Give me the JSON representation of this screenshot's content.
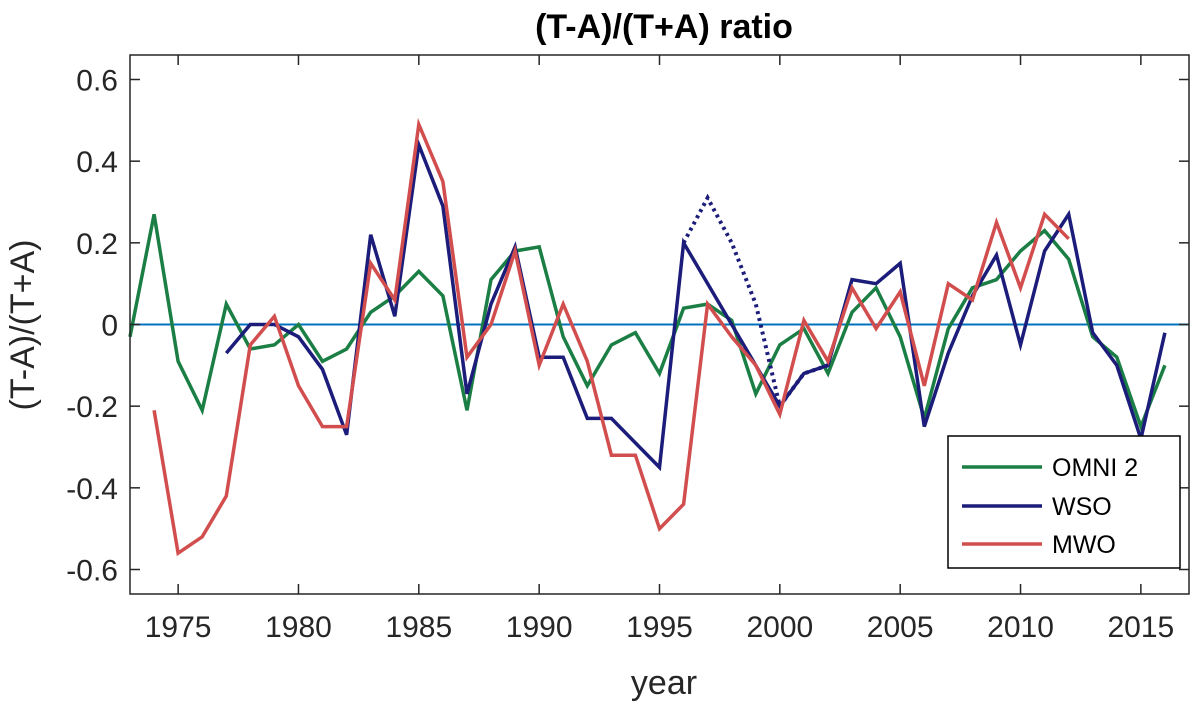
{
  "chart_data": {
    "type": "line",
    "title": "(T-A)/(T+A) ratio",
    "xlabel": "year",
    "ylabel": "(T-A)/(T+A)",
    "xlim": [
      1973,
      2017
    ],
    "ylim": [
      -0.66,
      0.66
    ],
    "xticks": [
      1975,
      1980,
      1985,
      1990,
      1995,
      2000,
      2005,
      2010,
      2015
    ],
    "yticks": [
      -0.6,
      -0.4,
      -0.2,
      0,
      0.2,
      0.4,
      0.6
    ],
    "ytick_labels": [
      "-0.6",
      "-0.4",
      "-0.2",
      "0",
      "0.2",
      "0.4",
      "0.6"
    ],
    "legend_position": "bottom-right",
    "reference_line": {
      "y": 0,
      "color": "#0072BD"
    },
    "series": [
      {
        "name": "OMNI 2",
        "color": "#1B7F45",
        "x": [
          1973,
          1974,
          1975,
          1976,
          1977,
          1978,
          1979,
          1980,
          1981,
          1982,
          1983,
          1984,
          1985,
          1986,
          1987,
          1988,
          1989,
          1990,
          1991,
          1992,
          1993,
          1994,
          1995,
          1996,
          1997,
          1998,
          1999,
          2000,
          2001,
          2002,
          2003,
          2004,
          2005,
          2006,
          2007,
          2008,
          2009,
          2010,
          2011,
          2012,
          2013,
          2014,
          2015,
          2016
        ],
        "y": [
          -0.03,
          0.27,
          -0.09,
          -0.21,
          0.05,
          -0.06,
          -0.05,
          0.0,
          -0.09,
          -0.06,
          0.03,
          0.07,
          0.13,
          0.07,
          -0.21,
          0.11,
          0.18,
          0.19,
          -0.03,
          -0.15,
          -0.05,
          -0.02,
          -0.12,
          0.04,
          0.05,
          0.01,
          -0.17,
          -0.05,
          -0.01,
          -0.12,
          0.03,
          0.09,
          -0.03,
          -0.23,
          -0.01,
          0.09,
          0.11,
          0.18,
          0.23,
          0.16,
          -0.03,
          -0.08,
          -0.25,
          -0.1
        ]
      },
      {
        "name": "WSO",
        "color": "#1C1C7A",
        "x": [
          1977,
          1978,
          1979,
          1980,
          1981,
          1982,
          1983,
          1984,
          1985,
          1986,
          1987,
          1988,
          1989,
          1990,
          1991,
          1992,
          1993,
          1994,
          1995,
          1996,
          2000,
          2001,
          2002,
          2003,
          2004,
          2005,
          2006,
          2007,
          2008,
          2009,
          2010,
          2011,
          2012,
          2013,
          2014,
          2015,
          2016
        ],
        "y": [
          -0.07,
          0.0,
          0.0,
          -0.03,
          -0.11,
          -0.27,
          0.22,
          0.02,
          0.44,
          0.29,
          -0.17,
          0.05,
          0.19,
          -0.08,
          -0.08,
          -0.23,
          -0.23,
          -0.29,
          -0.35,
          0.2,
          -0.2,
          -0.12,
          -0.1,
          0.11,
          0.1,
          0.15,
          -0.25,
          -0.07,
          0.07,
          0.17,
          -0.05,
          0.18,
          0.27,
          -0.02,
          -0.1,
          -0.28,
          -0.02
        ],
        "dotted_segment": {
          "x": [
            1996,
            1997,
            1998,
            1999,
            2000,
            2001,
            2002
          ],
          "y": [
            0.2,
            0.31,
            0.2,
            0.05,
            -0.2,
            -0.12,
            -0.1
          ]
        }
      },
      {
        "name": "MWO",
        "color": "#D24E4E",
        "x": [
          1974,
          1975,
          1976,
          1977,
          1978,
          1979,
          1980,
          1981,
          1982,
          1983,
          1984,
          1985,
          1986,
          1987,
          1988,
          1989,
          1990,
          1991,
          1992,
          1993,
          1994,
          1995,
          1996,
          1997,
          1998,
          1999,
          2000,
          2001,
          2002,
          2003,
          2004,
          2005,
          2006,
          2007,
          2008,
          2009,
          2010,
          2011,
          2012
        ],
        "y": [
          -0.21,
          -0.56,
          -0.52,
          -0.42,
          -0.05,
          0.02,
          -0.15,
          -0.25,
          -0.25,
          0.15,
          0.06,
          0.49,
          0.35,
          -0.08,
          0.0,
          0.18,
          -0.1,
          0.05,
          -0.09,
          -0.32,
          -0.32,
          -0.5,
          -0.44,
          0.05,
          -0.03,
          -0.1,
          -0.22,
          0.01,
          -0.09,
          0.09,
          -0.01,
          0.08,
          -0.15,
          0.1,
          0.06,
          0.25,
          0.09,
          0.27,
          0.21
        ]
      }
    ]
  }
}
